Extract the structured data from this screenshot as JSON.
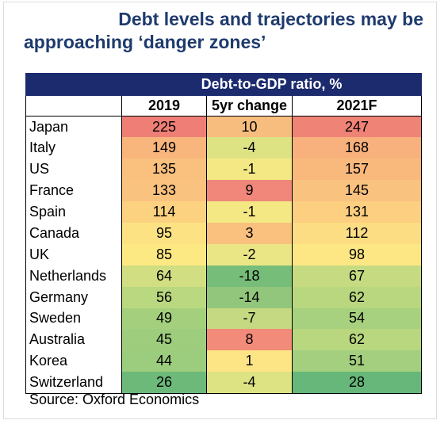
{
  "title_line1": "Debt levels and trajectories may be",
  "title_line2": "approaching ‘danger zones’",
  "header_group": "Debt-to-GDP ratio, %",
  "columns": [
    "2019",
    "5yr change",
    "2021F"
  ],
  "source": "Source: Oxford Economics",
  "chart_data": {
    "type": "table",
    "title": "Debt levels and trajectories may be approaching ‘danger zones’",
    "group_header": "Debt-to-GDP ratio, %",
    "columns": [
      "2019",
      "5yr change",
      "2021F"
    ],
    "rows": [
      {
        "country": "Japan",
        "values": [
          "225",
          "10",
          "247"
        ],
        "colors": [
          "#ef7f76",
          "#f7bd7e",
          "#ef8376"
        ]
      },
      {
        "country": "Italy",
        "values": [
          "149",
          "-4",
          "168"
        ],
        "colors": [
          "#f8b57c",
          "#dde283",
          "#f8b17c"
        ]
      },
      {
        "country": "US",
        "values": [
          "135",
          "-1",
          "157"
        ],
        "colors": [
          "#f9c07e",
          "#f4e885",
          "#f9b97d"
        ]
      },
      {
        "country": "France",
        "values": [
          "133",
          "9",
          "145"
        ],
        "colors": [
          "#fac27f",
          "#f0877a",
          "#fac27f"
        ]
      },
      {
        "country": "Spain",
        "values": [
          "114",
          "-1",
          "131"
        ],
        "colors": [
          "#fcd281",
          "#f4e885",
          "#fccf81"
        ]
      },
      {
        "country": "Canada",
        "values": [
          "95",
          "3",
          "112"
        ],
        "colors": [
          "#fde284",
          "#f9c07e",
          "#fddd83"
        ]
      },
      {
        "country": "UK",
        "values": [
          "85",
          "-2",
          "98"
        ],
        "colors": [
          "#fde984",
          "#ebe685",
          "#fde784"
        ]
      },
      {
        "country": "Netherlands",
        "values": [
          "64",
          "-18",
          "67"
        ],
        "colors": [
          "#d1de82",
          "#77bd7a",
          "#c6db81"
        ]
      },
      {
        "country": "Germany",
        "values": [
          "56",
          "-14",
          "62"
        ],
        "colors": [
          "#bad87f",
          "#92c67c",
          "#b9d77f"
        ]
      },
      {
        "country": "Sweden",
        "values": [
          "49",
          "-7",
          "54"
        ],
        "colors": [
          "#a4d07e",
          "#c4d981",
          "#a7d17e"
        ]
      },
      {
        "country": "Australia",
        "values": [
          "45",
          "8",
          "62"
        ],
        "colors": [
          "#9dcd7d",
          "#f28b79",
          "#b9d77f"
        ]
      },
      {
        "country": "Korea",
        "values": [
          "44",
          "1",
          "51"
        ],
        "colors": [
          "#9ccc7d",
          "#fde585",
          "#a3cf7e"
        ]
      },
      {
        "country": "Switzerland",
        "values": [
          "26",
          "-4",
          "28"
        ],
        "colors": [
          "#6cb97a",
          "#dde283",
          "#66b779"
        ]
      }
    ]
  }
}
